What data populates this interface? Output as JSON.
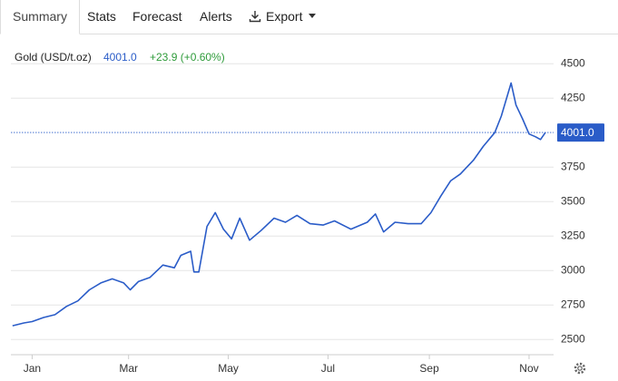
{
  "tabs": [
    "Summary",
    "Stats",
    "Forecast",
    "Alerts",
    "Export"
  ],
  "chart_data": {
    "type": "line",
    "title": "Gold (USD/t.oz)",
    "current": {
      "value": 4001,
      "label": "4001.0"
    },
    "change": "+23.9 (+0.60%)",
    "x": [
      -12,
      -5,
      0,
      7,
      14,
      21,
      28,
      35,
      42,
      49,
      56,
      60,
      65,
      72,
      80,
      87,
      91,
      97,
      99,
      102,
      107,
      112,
      117,
      122,
      127,
      133,
      140,
      148,
      155,
      162,
      170,
      178,
      185,
      195,
      205,
      210,
      215,
      222,
      230,
      238,
      244,
      250,
      256,
      262,
      270,
      276,
      283,
      287,
      293,
      296,
      300,
      304,
      308,
      311,
      314
    ],
    "series": [
      {
        "name": "Gold (USD/t.oz)",
        "color": "#2a5cc8",
        "values": [
          2600,
          2620,
          2630,
          2660,
          2680,
          2740,
          2780,
          2860,
          2910,
          2940,
          2910,
          2860,
          2920,
          2950,
          3040,
          3020,
          3110,
          3140,
          2990,
          2990,
          3320,
          3420,
          3300,
          3230,
          3380,
          3220,
          3290,
          3380,
          3350,
          3400,
          3340,
          3330,
          3360,
          3300,
          3350,
          3410,
          3280,
          3350,
          3340,
          3340,
          3420,
          3540,
          3650,
          3700,
          3800,
          3900,
          4000,
          4120,
          4360,
          4200,
          4100,
          3990,
          3970,
          3950,
          4001
        ]
      }
    ],
    "xlim": [
      -13,
      319
    ],
    "xticks": [
      {
        "value": 0,
        "label": "Jan"
      },
      {
        "value": 59,
        "label": "Mar"
      },
      {
        "value": 120,
        "label": "May"
      },
      {
        "value": 181,
        "label": "Jul"
      },
      {
        "value": 243,
        "label": "Sep"
      },
      {
        "value": 304,
        "label": "Nov"
      }
    ],
    "ylim": [
      2390,
      4600
    ],
    "yticks": [
      2500,
      2750,
      3000,
      3250,
      3500,
      3750,
      4250,
      4500
    ],
    "grid": true
  }
}
